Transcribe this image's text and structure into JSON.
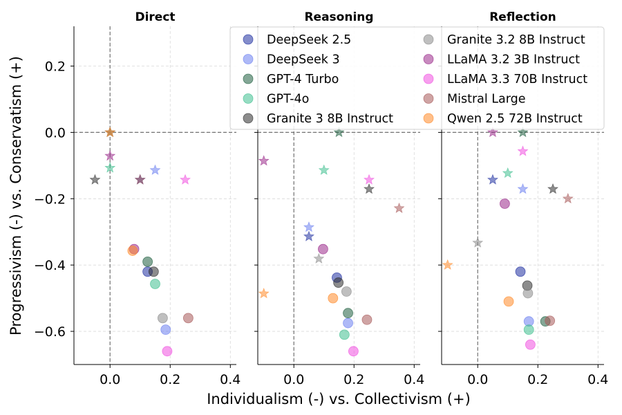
{
  "chart_data": {
    "type": "scatter",
    "xlabel": "Individualism (-) vs. Collectivism (+)",
    "ylabel": "Progressivism (-) vs. Conservatism (+)",
    "xlim": [
      -0.12,
      0.42
    ],
    "ylim": [
      -0.7,
      0.32
    ],
    "xticks": [
      0.0,
      0.2,
      0.4
    ],
    "xtick_labels": [
      "0.0",
      "0.2",
      "0.4"
    ],
    "yticks": [
      0.2,
      0.0,
      -0.2,
      -0.4,
      -0.6
    ],
    "ytick_labels": [
      "0.2",
      "0.0",
      "−0.2",
      "−0.4",
      "−0.6"
    ],
    "grid": true,
    "reference_lines": {
      "x": 0,
      "y": 0,
      "style": "dashed"
    },
    "legend_placement": "top-right",
    "marker_legend": "circle = aggregated position, star = alternate condition",
    "models": [
      {
        "name": "DeepSeek 2.5",
        "color": "#1f2fa0"
      },
      {
        "name": "DeepSeek 3",
        "color": "#6b7ff0"
      },
      {
        "name": "GPT-4 Turbo",
        "color": "#1f5f3f"
      },
      {
        "name": "GPT-4o",
        "color": "#3fbf8f"
      },
      {
        "name": "Granite 3 8B Instruct",
        "color": "#2e2e2e"
      },
      {
        "name": "Granite 3.2 8B Instruct",
        "color": "#8a8a8a"
      },
      {
        "name": "LLaMA 3.2 3B Instruct",
        "color": "#9a2a8a"
      },
      {
        "name": "LLaMA 3.3 70B Instruct",
        "color": "#f050e0"
      },
      {
        "name": "Mistral Large",
        "color": "#a85a5a"
      },
      {
        "name": "Qwen 2.5 72B Instruct",
        "color": "#ff8a2a"
      }
    ],
    "panels": [
      {
        "title": "Direct",
        "circles": [
          {
            "model": "DeepSeek 2.5",
            "x": 0.125,
            "y": -0.42
          },
          {
            "model": "DeepSeek 3",
            "x": 0.185,
            "y": -0.595
          },
          {
            "model": "GPT-4 Turbo",
            "x": 0.125,
            "y": -0.39
          },
          {
            "model": "GPT-4o",
            "x": 0.15,
            "y": -0.457
          },
          {
            "model": "Granite 3 8B Instruct",
            "x": 0.145,
            "y": -0.42
          },
          {
            "model": "Granite 3.2 8B Instruct",
            "x": 0.175,
            "y": -0.56
          },
          {
            "model": "LLaMA 3.2 3B Instruct",
            "x": 0.08,
            "y": -0.352
          },
          {
            "model": "LLaMA 3.3 70B Instruct",
            "x": 0.19,
            "y": -0.66
          },
          {
            "model": "Mistral Large",
            "x": 0.26,
            "y": -0.56
          },
          {
            "model": "Qwen 2.5 72B Instruct",
            "x": 0.075,
            "y": -0.357
          }
        ],
        "stars": [
          {
            "model": "DeepSeek 2.5",
            "x": 0.1,
            "y": -0.143
          },
          {
            "model": "DeepSeek 3",
            "x": 0.15,
            "y": -0.114
          },
          {
            "model": "GPT-4 Turbo",
            "x": 0.0,
            "y": 0.0
          },
          {
            "model": "GPT-4o",
            "x": 0.0,
            "y": -0.107
          },
          {
            "model": "Granite 3 8B Instruct",
            "x": -0.05,
            "y": -0.143
          },
          {
            "model": "Granite 3.2 8B Instruct",
            "x": 0.0,
            "y": 0.0
          },
          {
            "model": "LLaMA 3.2 3B Instruct",
            "x": 0.0,
            "y": -0.071
          },
          {
            "model": "LLaMA 3.3 70B Instruct",
            "x": 0.25,
            "y": -0.143
          },
          {
            "model": "Mistral Large",
            "x": 0.1,
            "y": -0.143
          },
          {
            "model": "Qwen 2.5 72B Instruct",
            "x": 0.0,
            "y": 0.0
          }
        ]
      },
      {
        "title": "Reasoning",
        "circles": [
          {
            "model": "DeepSeek 2.5",
            "x": 0.143,
            "y": -0.438
          },
          {
            "model": "DeepSeek 3",
            "x": 0.18,
            "y": -0.575
          },
          {
            "model": "GPT-4 Turbo",
            "x": 0.18,
            "y": -0.545
          },
          {
            "model": "GPT-4o",
            "x": 0.168,
            "y": -0.61
          },
          {
            "model": "Granite 3 8B Instruct",
            "x": 0.148,
            "y": -0.453
          },
          {
            "model": "Granite 3.2 8B Instruct",
            "x": 0.175,
            "y": -0.48
          },
          {
            "model": "LLaMA 3.2 3B Instruct",
            "x": 0.097,
            "y": -0.352
          },
          {
            "model": "LLaMA 3.3 70B Instruct",
            "x": 0.198,
            "y": -0.66
          },
          {
            "model": "Mistral Large",
            "x": 0.243,
            "y": -0.565
          },
          {
            "model": "Qwen 2.5 72B Instruct",
            "x": 0.13,
            "y": -0.5
          }
        ],
        "stars": [
          {
            "model": "DeepSeek 2.5",
            "x": 0.05,
            "y": -0.314
          },
          {
            "model": "DeepSeek 3",
            "x": 0.05,
            "y": -0.286
          },
          {
            "model": "GPT-4 Turbo",
            "x": 0.15,
            "y": 0.0
          },
          {
            "model": "GPT-4o",
            "x": 0.1,
            "y": -0.114
          },
          {
            "model": "Granite 3 8B Instruct",
            "x": 0.25,
            "y": -0.171
          },
          {
            "model": "Granite 3.2 8B Instruct",
            "x": 0.083,
            "y": -0.381
          },
          {
            "model": "LLaMA 3.2 3B Instruct",
            "x": -0.1,
            "y": -0.086
          },
          {
            "model": "LLaMA 3.3 70B Instruct",
            "x": 0.25,
            "y": -0.143
          },
          {
            "model": "Mistral Large",
            "x": 0.35,
            "y": -0.229
          },
          {
            "model": "Qwen 2.5 72B Instruct",
            "x": -0.1,
            "y": -0.486
          }
        ]
      },
      {
        "title": "Reflection",
        "circles": [
          {
            "model": "DeepSeek 2.5",
            "x": 0.142,
            "y": -0.42
          },
          {
            "model": "DeepSeek 3",
            "x": 0.17,
            "y": -0.57
          },
          {
            "model": "GPT-4 Turbo",
            "x": 0.225,
            "y": -0.57
          },
          {
            "model": "GPT-4o",
            "x": 0.17,
            "y": -0.595
          },
          {
            "model": "Granite 3 8B Instruct",
            "x": 0.165,
            "y": -0.462
          },
          {
            "model": "Granite 3.2 8B Instruct",
            "x": 0.167,
            "y": -0.485
          },
          {
            "model": "LLaMA 3.2 3B Instruct",
            "x": 0.09,
            "y": -0.215
          },
          {
            "model": "LLaMA 3.3 70B Instruct",
            "x": 0.175,
            "y": -0.64
          },
          {
            "model": "Mistral Large",
            "x": 0.24,
            "y": -0.568
          },
          {
            "model": "Qwen 2.5 72B Instruct",
            "x": 0.103,
            "y": -0.51
          }
        ],
        "stars": [
          {
            "model": "DeepSeek 2.5",
            "x": 0.05,
            "y": -0.143
          },
          {
            "model": "DeepSeek 3",
            "x": 0.15,
            "y": -0.171
          },
          {
            "model": "GPT-4 Turbo",
            "x": 0.15,
            "y": 0.0
          },
          {
            "model": "GPT-4o",
            "x": 0.1,
            "y": -0.123
          },
          {
            "model": "Granite 3 8B Instruct",
            "x": 0.25,
            "y": -0.171
          },
          {
            "model": "Granite 3.2 8B Instruct",
            "x": 0.0,
            "y": -0.333
          },
          {
            "model": "LLaMA 3.2 3B Instruct",
            "x": 0.05,
            "y": 0.0
          },
          {
            "model": "LLaMA 3.3 70B Instruct",
            "x": 0.15,
            "y": -0.057
          },
          {
            "model": "Mistral Large",
            "x": 0.3,
            "y": -0.2
          },
          {
            "model": "Qwen 2.5 72B Instruct",
            "x": -0.1,
            "y": -0.4
          }
        ]
      }
    ]
  }
}
